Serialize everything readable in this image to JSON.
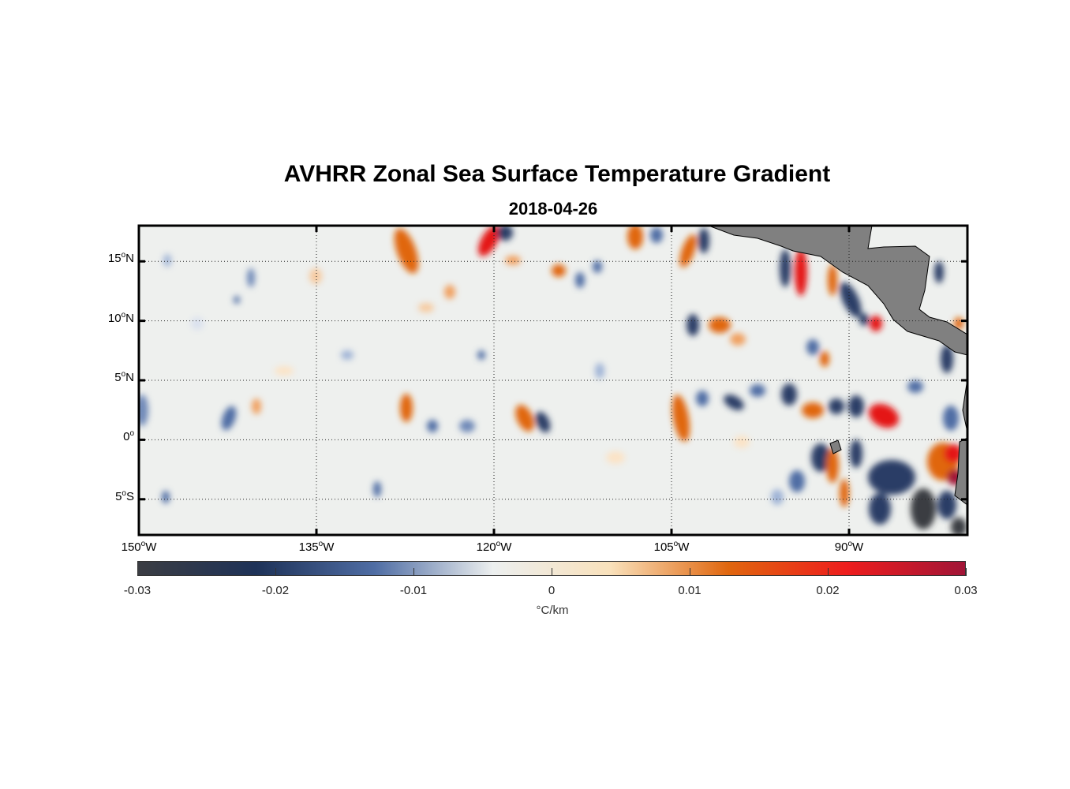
{
  "title": "AVHRR Zonal Sea Surface Temperature Gradient",
  "subtitle": "2018-04-26",
  "colorbar": {
    "units": "°C/km",
    "ticks": [
      "-0.03",
      "-0.02",
      "-0.01",
      "0",
      "0.01",
      "0.02",
      "0.03"
    ],
    "range": [
      -0.03,
      0.03
    ],
    "stops": [
      "#3b3d43",
      "#1e3258",
      "#4f6da4",
      "#ecefef",
      "#f9e1bb",
      "#e0660e",
      "#ee1d1d",
      "#a11537"
    ]
  },
  "map": {
    "lon_range": [
      -150,
      -80
    ],
    "lat_range": [
      -8,
      18
    ],
    "lat_ticks": [
      {
        "value": 15,
        "num": "15",
        "hemi": "N"
      },
      {
        "value": 10,
        "num": "10",
        "hemi": "N"
      },
      {
        "value": 5,
        "num": "5",
        "hemi": "N"
      },
      {
        "value": 0,
        "num": "0",
        "hemi": ""
      },
      {
        "value": -5,
        "num": "5",
        "hemi": "S"
      }
    ],
    "lon_ticks": [
      {
        "value": -150,
        "num": "150",
        "hemi": "W"
      },
      {
        "value": -135,
        "num": "135",
        "hemi": "W"
      },
      {
        "value": -120,
        "num": "120",
        "hemi": "W"
      },
      {
        "value": -105,
        "num": "105",
        "hemi": "W"
      },
      {
        "value": -90,
        "num": "90",
        "hemi": "W"
      }
    ],
    "land_color": "#808080",
    "gridlines": "dotted"
  }
}
